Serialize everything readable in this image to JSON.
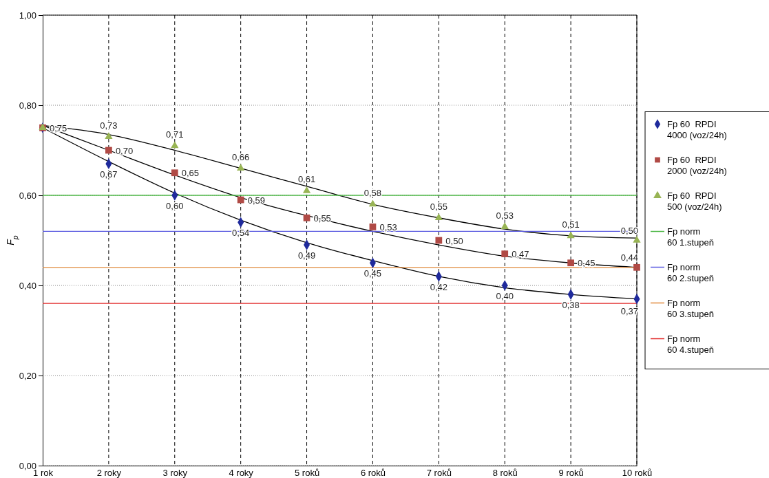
{
  "chart_data": {
    "type": "scatter",
    "ylabel": "F$_{p}$",
    "categories": [
      "1 rok",
      "2 roky",
      "3 roky",
      "4 roky",
      "5 roků",
      "6 roků",
      "7 roků",
      "8 roků",
      "9 roků",
      "10 roků"
    ],
    "ylim": [
      0,
      1
    ],
    "yticks": [
      {
        "value": 0,
        "label": "0,00"
      },
      {
        "value": 0.2,
        "label": "0,20"
      },
      {
        "value": 0.4,
        "label": "0,40"
      },
      {
        "value": 0.6,
        "label": "0,60"
      },
      {
        "value": 0.8,
        "label": "0,80"
      },
      {
        "value": 1,
        "label": "1,00"
      }
    ],
    "grid": true,
    "legend": "right",
    "series": [
      {
        "name": "Fp 60  RPDI 4000 (voz/24h)",
        "marker": "diamond",
        "color": "#1f2a9c",
        "values": [
          0.75,
          0.67,
          0.6,
          0.54,
          0.49,
          0.45,
          0.42,
          0.4,
          0.38,
          0.37
        ],
        "value_labels": [
          "0,75",
          "0,67",
          "0,60",
          "0,54",
          "0,49",
          "0,45",
          "0,42",
          "0,40",
          "0,38",
          "0,37"
        ]
      },
      {
        "name": "Fp 60  RPDI 2000 (voz/24h)",
        "marker": "square",
        "color": "#b04a45",
        "values": [
          0.75,
          0.7,
          0.65,
          0.59,
          0.55,
          0.53,
          0.5,
          0.47,
          0.45,
          0.44
        ],
        "value_labels": [
          null,
          "0,70",
          "0,65",
          "0,59",
          "0,55",
          "0,53",
          "0,50",
          "0,47",
          "0,45",
          "0,44"
        ]
      },
      {
        "name": "Fp 60  RPDI 500 (voz/24h)",
        "marker": "triangle",
        "color": "#98b454",
        "values": [
          0.75,
          0.73,
          0.71,
          0.66,
          0.61,
          0.58,
          0.55,
          0.53,
          0.51,
          0.5
        ],
        "value_labels": [
          null,
          "0,73",
          "0,71",
          "0,66",
          "0,61",
          "0,58",
          "0,55",
          "0,53",
          "0,51",
          "0,50"
        ]
      },
      {
        "type": "line",
        "color": "#000000",
        "values": [
          0.75,
          0.675,
          0.605,
          0.545,
          0.495,
          0.455,
          0.42,
          0.395,
          0.38,
          0.37
        ]
      },
      {
        "type": "line",
        "color": "#000000",
        "values": [
          0.755,
          0.7,
          0.645,
          0.595,
          0.555,
          0.52,
          0.49,
          0.465,
          0.45,
          0.44
        ]
      },
      {
        "type": "line",
        "color": "#000000",
        "values": [
          0.755,
          0.735,
          0.7,
          0.66,
          0.62,
          0.58,
          0.55,
          0.525,
          0.51,
          0.505
        ]
      },
      {
        "name": "Fp norm 60 1.stupeň",
        "type": "line",
        "color": "#4fb848",
        "values": [
          0.6,
          0.6,
          0.6,
          0.6,
          0.6,
          0.6,
          0.6,
          0.6,
          0.6,
          0.6
        ]
      },
      {
        "name": "Fp norm 60 2.stupeň",
        "type": "line",
        "color": "#5a5ae0",
        "values": [
          0.52,
          0.52,
          0.52,
          0.52,
          0.52,
          0.52,
          0.52,
          0.52,
          0.52,
          0.52
        ]
      },
      {
        "name": "Fp norm 60 3.stupeň",
        "type": "line",
        "color": "#e08a3c",
        "values": [
          0.44,
          0.44,
          0.44,
          0.44,
          0.44,
          0.44,
          0.44,
          0.44,
          0.44,
          0.44
        ]
      },
      {
        "name": "Fp norm 60 4.stupeň",
        "type": "line",
        "color": "#e02424",
        "values": [
          0.36,
          0.36,
          0.36,
          0.36,
          0.36,
          0.36,
          0.36,
          0.36,
          0.36,
          0.36
        ]
      }
    ]
  }
}
